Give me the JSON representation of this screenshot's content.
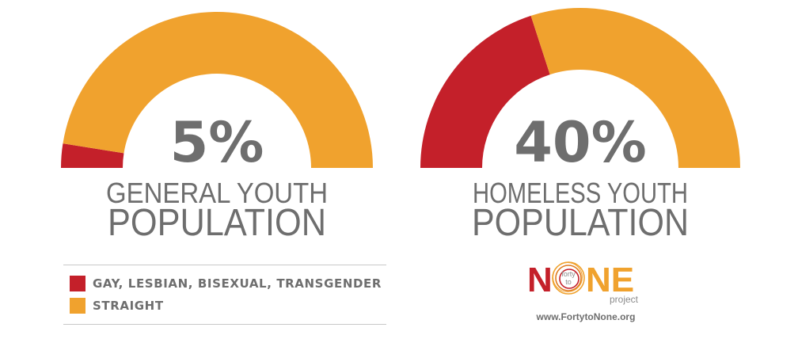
{
  "colors": {
    "lgbt": "#c4202a",
    "straight": "#f0a22e",
    "text": "#6e6e6e"
  },
  "chart_data": [
    {
      "type": "pie",
      "variant": "half-donut",
      "title": "GENERAL YOUTH POPULATION",
      "center_label": "5%",
      "slices": [
        {
          "name": "GAY, LESBIAN, BISEXUAL, TRANSGENDER",
          "value": 5
        },
        {
          "name": "STRAIGHT",
          "value": 95
        }
      ]
    },
    {
      "type": "pie",
      "variant": "half-donut",
      "title": "HOMELESS YOUTH POPULATION",
      "center_label": "40%",
      "slices": [
        {
          "name": "GAY, LESBIAN, BISEXUAL, TRANSGENDER",
          "value": 40
        },
        {
          "name": "STRAIGHT",
          "value": 60
        }
      ]
    }
  ],
  "charts": [
    {
      "pct": "5%",
      "line1": "GENERAL YOUTH",
      "line2": "POPULATION"
    },
    {
      "pct": "40%",
      "line1": "HOMELESS YOUTH",
      "line2": "POPULATION"
    }
  ],
  "legend": [
    {
      "label": "GAY, LESBIAN, BISEXUAL, TRANSGENDER",
      "color_key": "lgbt"
    },
    {
      "label": "STRAIGHT",
      "color_key": "straight"
    }
  ],
  "logo": {
    "word_n": "N",
    "word_ne": "NE",
    "small_top": "forty",
    "small_bottom": "to",
    "project": "project",
    "url": "www.FortytoNone.org"
  }
}
